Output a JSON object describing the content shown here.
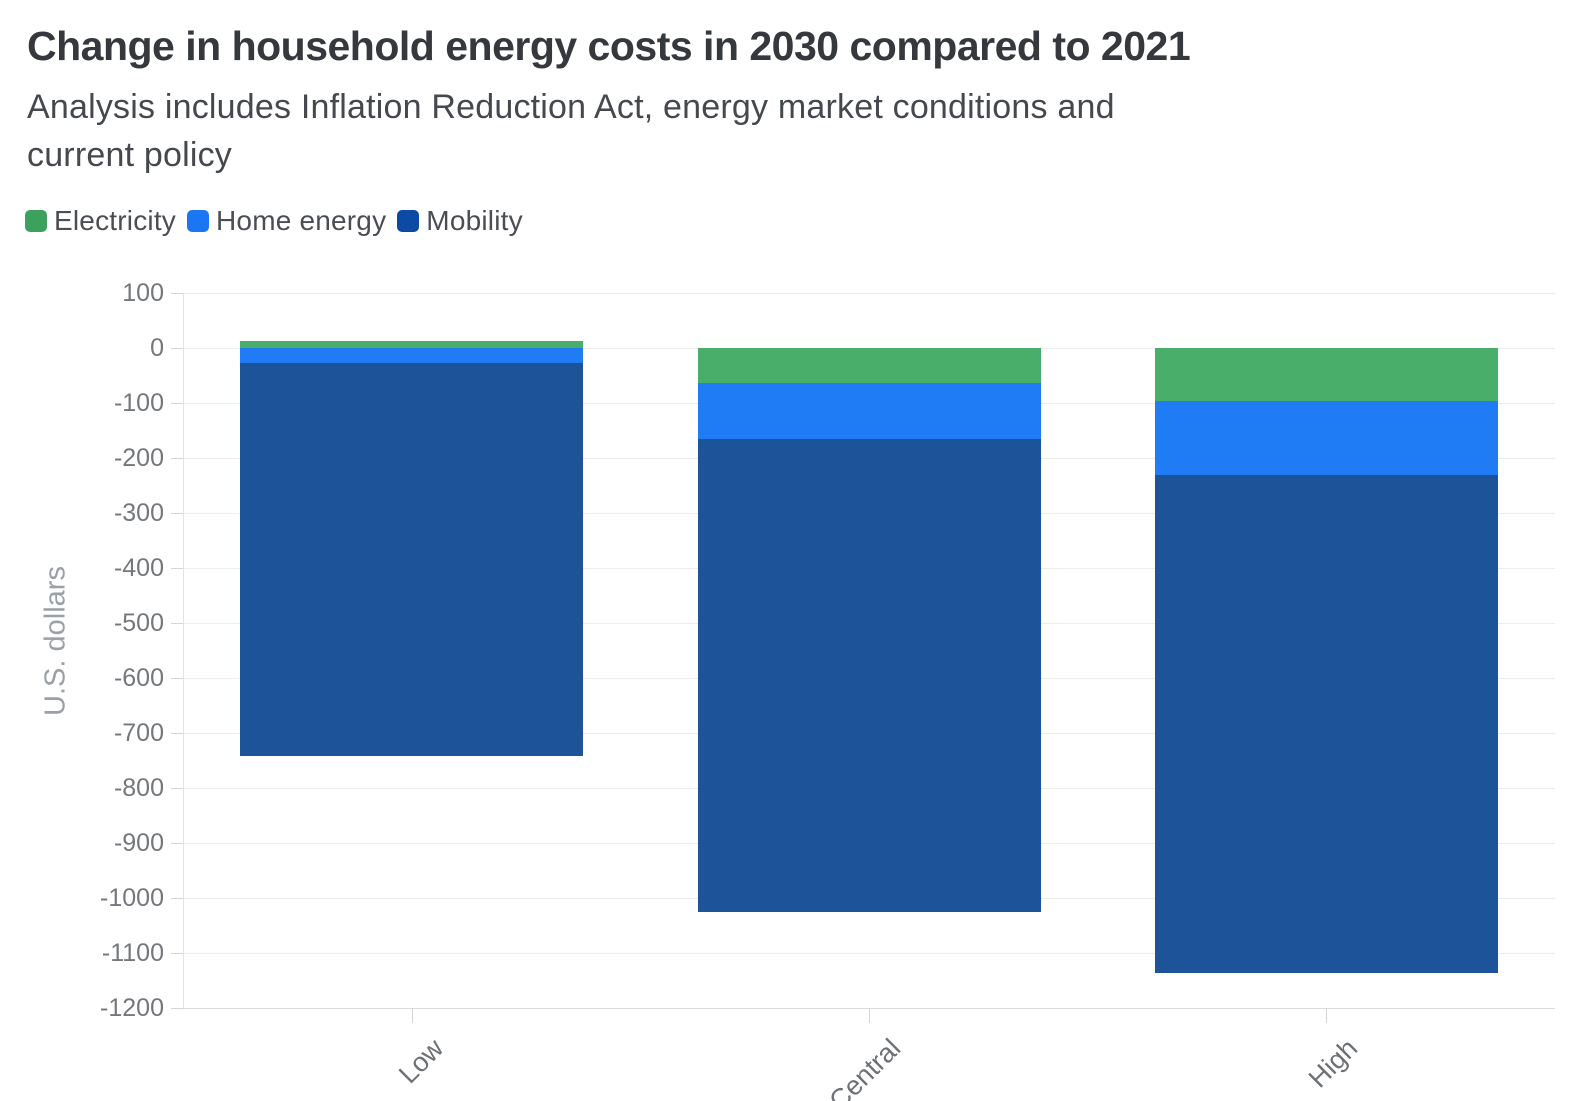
{
  "header": {
    "title": "Change in household energy costs in 2030 compared to 2021",
    "subtitle": "Analysis includes Inflation Reduction Act, energy market conditions and current policy",
    "subtitle_line1": "Analysis includes Inflation Reduction Act, energy market conditions and",
    "subtitle_line2": "current policy"
  },
  "legend": {
    "items": [
      {
        "label": "Electricity",
        "color": "#3da15e"
      },
      {
        "label": "Home energy",
        "color": "#1b76f2"
      },
      {
        "label": "Mobility",
        "color": "#0c4aa3"
      }
    ]
  },
  "chart_data": {
    "type": "bar",
    "stacked": true,
    "title": "Change in household energy costs in 2030 compared to 2021",
    "subtitle": "Analysis includes Inflation Reduction Act, energy market conditions and current policy",
    "categories": [
      "Low",
      "Central",
      "High"
    ],
    "series": [
      {
        "name": "Electricity",
        "color": "#4aae6b",
        "values": [
          12,
          -64,
          -97
        ]
      },
      {
        "name": "Home energy",
        "color": "#1f7cf4",
        "values": [
          -28,
          -102,
          -133
        ]
      },
      {
        "name": "Mobility",
        "color": "#1d5499",
        "values": [
          -713,
          -860,
          -906
        ]
      }
    ],
    "stack_bottoms": [
      -741,
      -1026,
      -1136
    ],
    "xlabel": "",
    "ylabel": "U.S. dollars",
    "ylim": [
      -1200,
      100
    ],
    "ytick_step": 100,
    "yticks": [
      100,
      0,
      -100,
      -200,
      -300,
      -400,
      -500,
      -600,
      -700,
      -800,
      -900,
      -1000,
      -1100,
      -1200
    ],
    "grid": true,
    "legend_position": "top-left",
    "x_label_rotation": -45
  }
}
